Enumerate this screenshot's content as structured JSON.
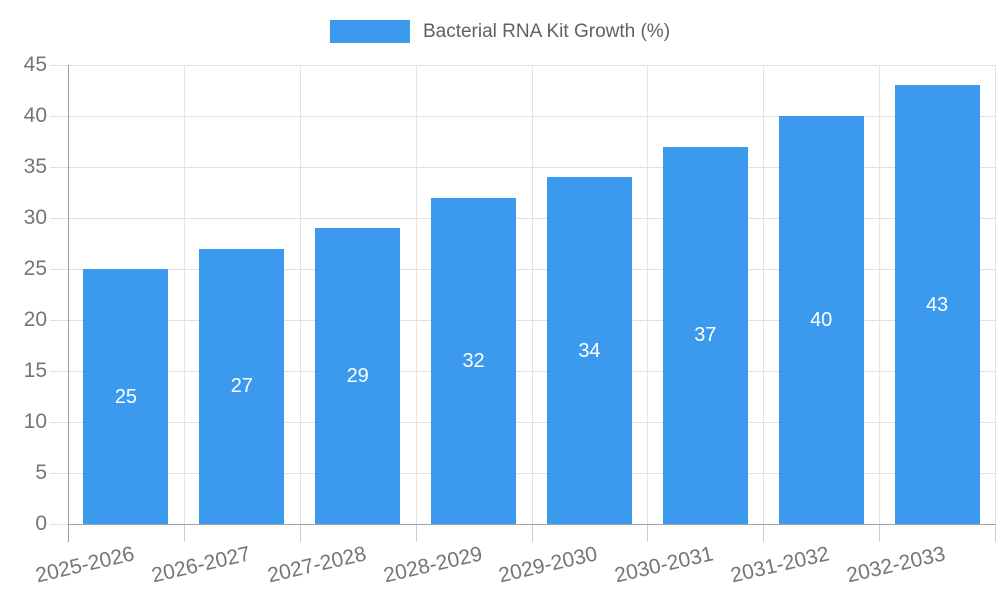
{
  "legend": {
    "label": "Bacterial RNA Kit Growth (%)"
  },
  "chart_data": {
    "type": "bar",
    "title": "Bacterial RNA Kit Growth (%)",
    "categories": [
      "2025-2026",
      "2026-2027",
      "2027-2028",
      "2028-2029",
      "2029-2030",
      "2030-2031",
      "2031-2032",
      "2032-2033"
    ],
    "values": [
      25,
      27,
      29,
      32,
      34,
      37,
      40,
      43
    ],
    "xlabel": "",
    "ylabel": "",
    "ylim": [
      0,
      45
    ],
    "yticks": [
      0,
      5,
      10,
      15,
      20,
      25,
      30,
      35,
      40,
      45
    ],
    "grid": true,
    "legend_position": "top-center",
    "bar_color": "#3B99EE",
    "value_label_color": "#ffffff",
    "axis_label_color": "#757575",
    "legend_text_color": "#616161",
    "grid_color": "#e0e0e0",
    "axis_line_color": "#9e9e9e",
    "background_color": "#ffffff"
  }
}
